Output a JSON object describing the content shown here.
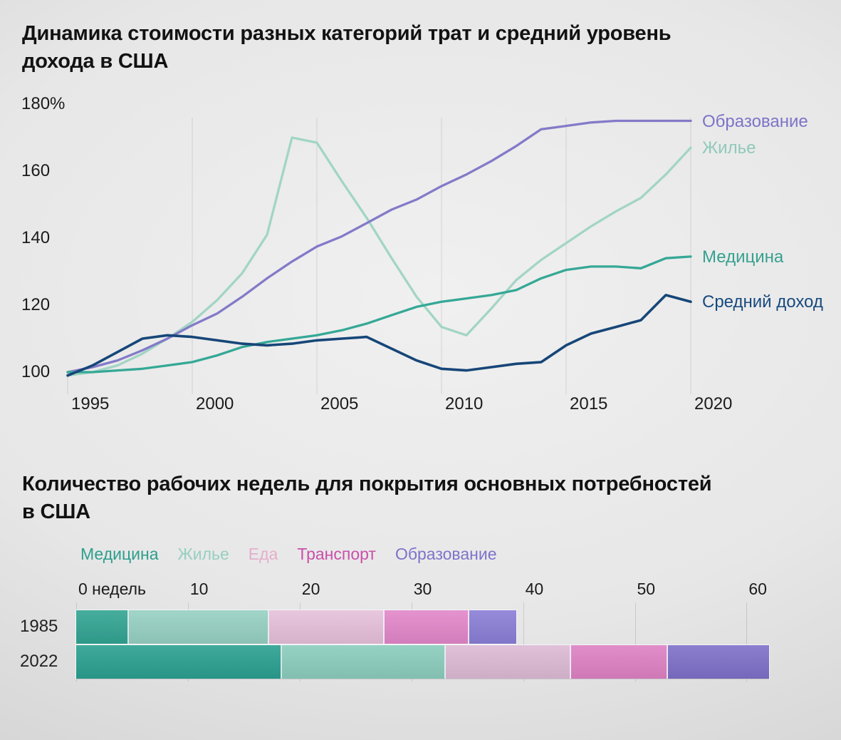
{
  "chart_data": [
    {
      "type": "line",
      "title": "Динамика стоимости разных категорий трат и средний уровень дохода в США",
      "title_lines": [
        "Динамика стоимости разных категорий трат и средний уровень",
        "дохода в США"
      ],
      "x": [
        1995,
        1996,
        1997,
        1998,
        1999,
        2000,
        2001,
        2002,
        2003,
        2004,
        2005,
        2006,
        2007,
        2008,
        2009,
        2010,
        2011,
        2012,
        2013,
        2014,
        2015,
        2016,
        2017,
        2018,
        2019,
        2020
      ],
      "x_tick_labels": [
        "1995",
        "2000",
        "2005",
        "2010",
        "2015",
        "2020"
      ],
      "x_tick_years": [
        1995,
        2000,
        2005,
        2010,
        2015,
        2020
      ],
      "y_ticks": [
        {
          "label": "180%",
          "value": 180
        },
        {
          "label": "160",
          "value": 160
        },
        {
          "label": "140",
          "value": 140
        },
        {
          "label": "120",
          "value": 120
        },
        {
          "label": "100",
          "value": 100
        }
      ],
      "ylim": [
        97,
        183
      ],
      "grid": "vertical",
      "legend_position": "right",
      "series": [
        {
          "key": "education",
          "name": "Образование",
          "color": "#837ac9",
          "label_color": "#7d73c8",
          "values": [
            100,
            101.5,
            103.5,
            106.5,
            110,
            114,
            117.5,
            122.5,
            128,
            133,
            137.5,
            140.5,
            144.5,
            148.5,
            151.5,
            155.5,
            159,
            163,
            167.5,
            172.5,
            173.5,
            174.5,
            175,
            175,
            175,
            175
          ]
        },
        {
          "key": "housing",
          "name": "Жилье",
          "color": "#a2d5c4",
          "label_color": "#90c9ba",
          "values": [
            99,
            100,
            102,
            105.5,
            110,
            115,
            121.5,
            129.5,
            141,
            170,
            168.5,
            157,
            146,
            134,
            122.5,
            113.5,
            111,
            119,
            127.5,
            133.5,
            138.5,
            143.5,
            148,
            152,
            159,
            167
          ]
        },
        {
          "key": "medicine",
          "name": "Медицина",
          "color": "#35a896",
          "label_color": "#36a18f",
          "values": [
            100,
            100,
            100.5,
            101,
            102,
            103,
            105,
            107.5,
            109,
            110,
            111,
            112.5,
            114.5,
            117,
            119.5,
            121,
            122,
            123,
            124.5,
            128,
            130.5,
            131.5,
            131.5,
            131,
            134,
            134.5
          ]
        },
        {
          "key": "income",
          "name": "Средний доход",
          "color": "#164678",
          "label_color": "#174a7f",
          "values": [
            99,
            102,
            106,
            110,
            111,
            110.5,
            109.5,
            108.5,
            108,
            108.5,
            109.5,
            110,
            110.5,
            107,
            103.5,
            101,
            100.5,
            101.5,
            102.5,
            103,
            108,
            111.5,
            113.5,
            115.5,
            123,
            121
          ]
        }
      ]
    },
    {
      "type": "bar",
      "stacked": true,
      "orientation": "horizontal",
      "title": "Количество рабочих недель для покрытия основных потребностей в США",
      "title_lines": [
        "Количество рабочих недель для покрытия основных потребностей",
        "в США"
      ],
      "categories": [
        "1985",
        "2022"
      ],
      "x_ticks": [
        0,
        10,
        20,
        30,
        40,
        50,
        60
      ],
      "x_tick_labels": [
        "0 недель",
        "10",
        "20",
        "30",
        "40",
        "50",
        "60"
      ],
      "xlim": [
        0,
        68
      ],
      "unit": "weeks",
      "series": [
        {
          "key": "medicine",
          "name": "Медицина",
          "legend_color": "#2e9e8d",
          "bar_colors": [
            "#32a492",
            "#2aa090"
          ],
          "values": [
            4.7,
            18.4
          ]
        },
        {
          "key": "housing",
          "name": "Жилье",
          "legend_color": "#97cfc0",
          "bar_colors": [
            "#96d0c2",
            "#8bcdbd"
          ],
          "values": [
            12.6,
            14.7
          ]
        },
        {
          "key": "food",
          "name": "Еда",
          "legend_color": "#e5aecb",
          "bar_colors": [
            "#e6c0da",
            "#ddbad5"
          ],
          "values": [
            10.3,
            11.2
          ]
        },
        {
          "key": "transport",
          "name": "Транспорт",
          "legend_color": "#ca4fa9",
          "bar_colors": [
            "#e287ca",
            "#de81c4"
          ],
          "values": [
            7.6,
            8.7
          ]
        },
        {
          "key": "education",
          "name": "Образование",
          "legend_color": "#7e73ca",
          "bar_colors": [
            "#8a7ed6",
            "#7e70c9"
          ],
          "values": [
            4.2,
            9.0
          ]
        }
      ]
    }
  ]
}
